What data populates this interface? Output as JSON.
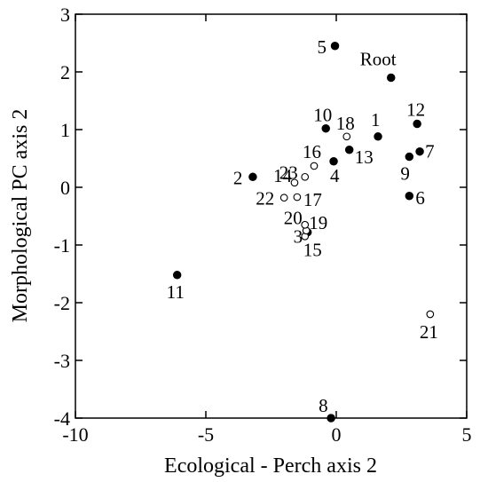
{
  "chart_data": {
    "type": "scatter",
    "title": "",
    "xlabel": "Ecological - Perch axis 2",
    "ylabel": "Morphological PC axis 2",
    "xlim": [
      -10,
      5
    ],
    "ylim": [
      -4,
      3
    ],
    "xticks": [
      -10,
      -5,
      0,
      5
    ],
    "yticks": [
      -4,
      -3,
      -2,
      -1,
      0,
      1,
      2,
      3
    ],
    "xtick_labels": [
      "-10",
      "-5",
      "0",
      "5"
    ],
    "ytick_labels": [
      "-4",
      "-3",
      "-2",
      "-1",
      "0",
      "1",
      "2",
      "3"
    ],
    "grid": false,
    "legend": "none",
    "series": [
      {
        "marker": "filled",
        "points": [
          {
            "label": "Root",
            "x": 2.1,
            "y": 1.9
          },
          {
            "label": "1",
            "x": 1.6,
            "y": 0.88
          },
          {
            "label": "2",
            "x": -3.2,
            "y": 0.18
          },
          {
            "label": "3",
            "x": -1.1,
            "y": -0.78
          },
          {
            "label": "4",
            "x": -0.1,
            "y": 0.45
          },
          {
            "label": "5",
            "x": -0.05,
            "y": 2.45
          },
          {
            "label": "6",
            "x": 2.8,
            "y": -0.15
          },
          {
            "label": "7",
            "x": 3.2,
            "y": 0.62
          },
          {
            "label": "8",
            "x": -0.2,
            "y": -4.0
          },
          {
            "label": "9",
            "x": 2.8,
            "y": 0.53
          },
          {
            "label": "10",
            "x": -0.4,
            "y": 1.02
          },
          {
            "label": "11",
            "x": -6.1,
            "y": -1.52
          },
          {
            "label": "12",
            "x": 3.1,
            "y": 1.1
          },
          {
            "label": "13",
            "x": 0.5,
            "y": 0.65
          }
        ]
      },
      {
        "marker": "open",
        "points": [
          {
            "label": "14",
            "x": -1.6,
            "y": 0.08
          },
          {
            "label": "15",
            "x": -1.2,
            "y": -0.85
          },
          {
            "label": "16",
            "x": -0.85,
            "y": 0.37
          },
          {
            "label": "17",
            "x": -1.5,
            "y": -0.17
          },
          {
            "label": "18",
            "x": 0.4,
            "y": 0.88
          },
          {
            "label": "19",
            "x": -1.15,
            "y": -0.75
          },
          {
            "label": "20",
            "x": -1.2,
            "y": -0.65
          },
          {
            "label": "21",
            "x": 3.6,
            "y": -2.2
          },
          {
            "label": "22",
            "x": -2.0,
            "y": -0.18
          },
          {
            "label": "23",
            "x": -1.2,
            "y": 0.18
          }
        ]
      }
    ]
  }
}
